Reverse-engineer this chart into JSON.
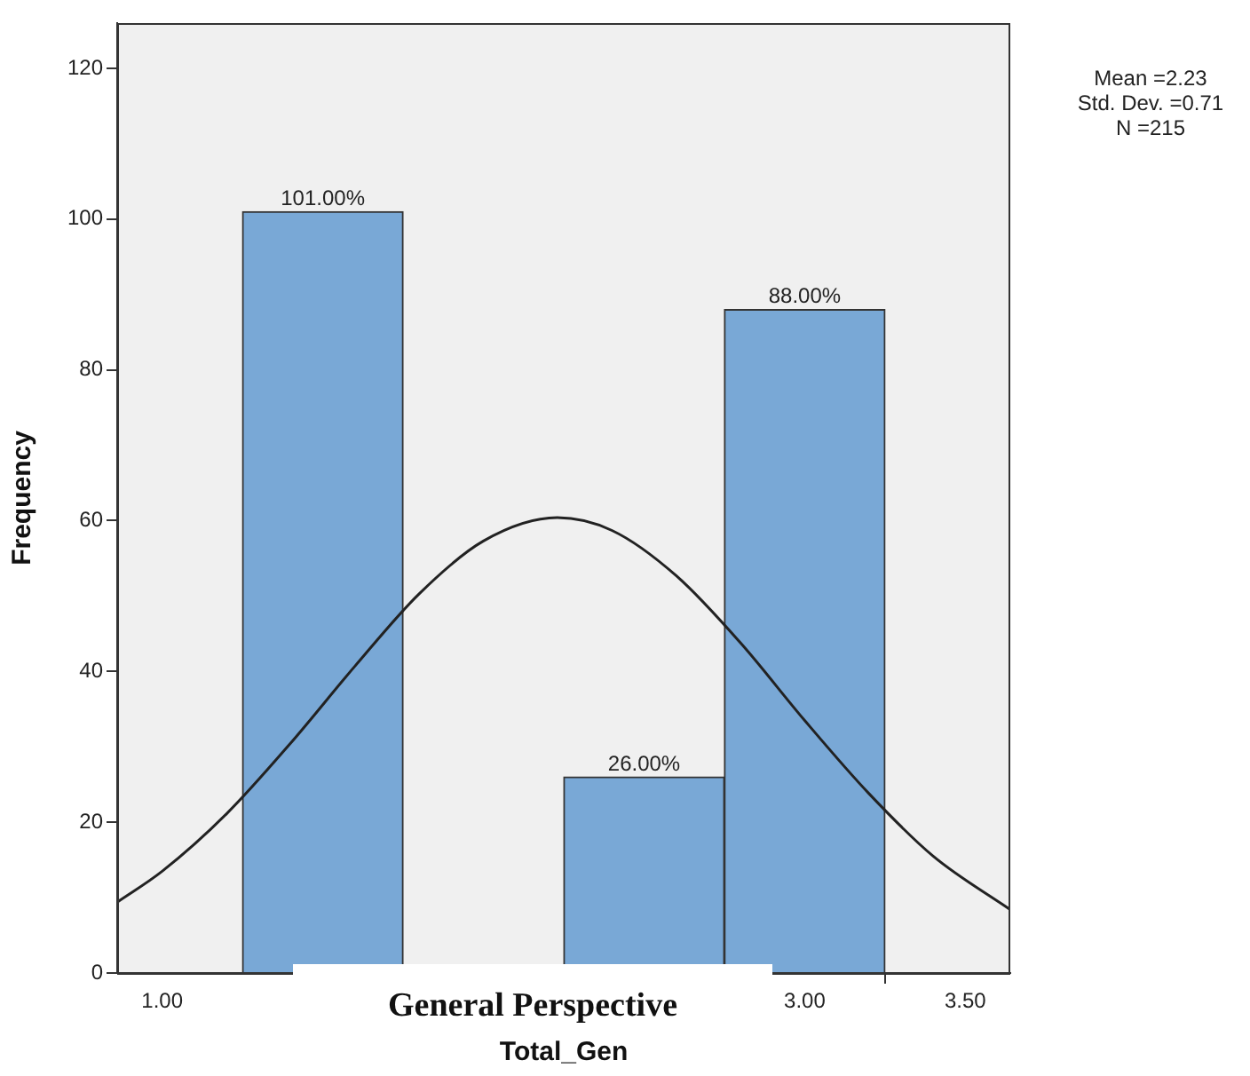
{
  "chart_data": {
    "type": "histogram",
    "xlabel": "Total_Gen",
    "ylabel": "Frequency",
    "bins": [
      1.25,
      1.75,
      2.25,
      2.75,
      3.25
    ],
    "values": [
      101,
      0,
      26,
      88
    ],
    "value_labels": [
      "101.00%",
      null,
      "26.00%",
      "88.00%"
    ],
    "color": "#79a8d6",
    "series": [
      {
        "type": "line",
        "color": "#222222",
        "x": [
          0.86,
          1.0,
          1.2,
          1.4,
          1.6,
          1.8,
          2.0,
          2.23,
          2.4,
          2.6,
          2.8,
          3.0,
          3.2,
          3.4,
          3.64
        ],
        "values": [
          9.4,
          13.5,
          21.1,
          30.5,
          40.7,
          50.3,
          57.3,
          60.4,
          58.7,
          52.7,
          43.8,
          33.5,
          23.8,
          15.5,
          8.4
        ]
      }
    ],
    "xlim": [
      0.86,
      3.64
    ],
    "xticks": [
      {
        "value": 1,
        "label": "1.00"
      },
      {
        "value": 3,
        "label": "3.00"
      },
      {
        "value": 3.5,
        "label": "3.50"
      }
    ],
    "ylim": [
      0,
      126
    ],
    "yticks": [
      0,
      20,
      40,
      60,
      80,
      100,
      120
    ],
    "grid": false,
    "legend": false,
    "annotations": [
      "Mean =2.23",
      "Std. Dev. =0.71",
      "N =215",
      "General Perspective"
    ]
  }
}
